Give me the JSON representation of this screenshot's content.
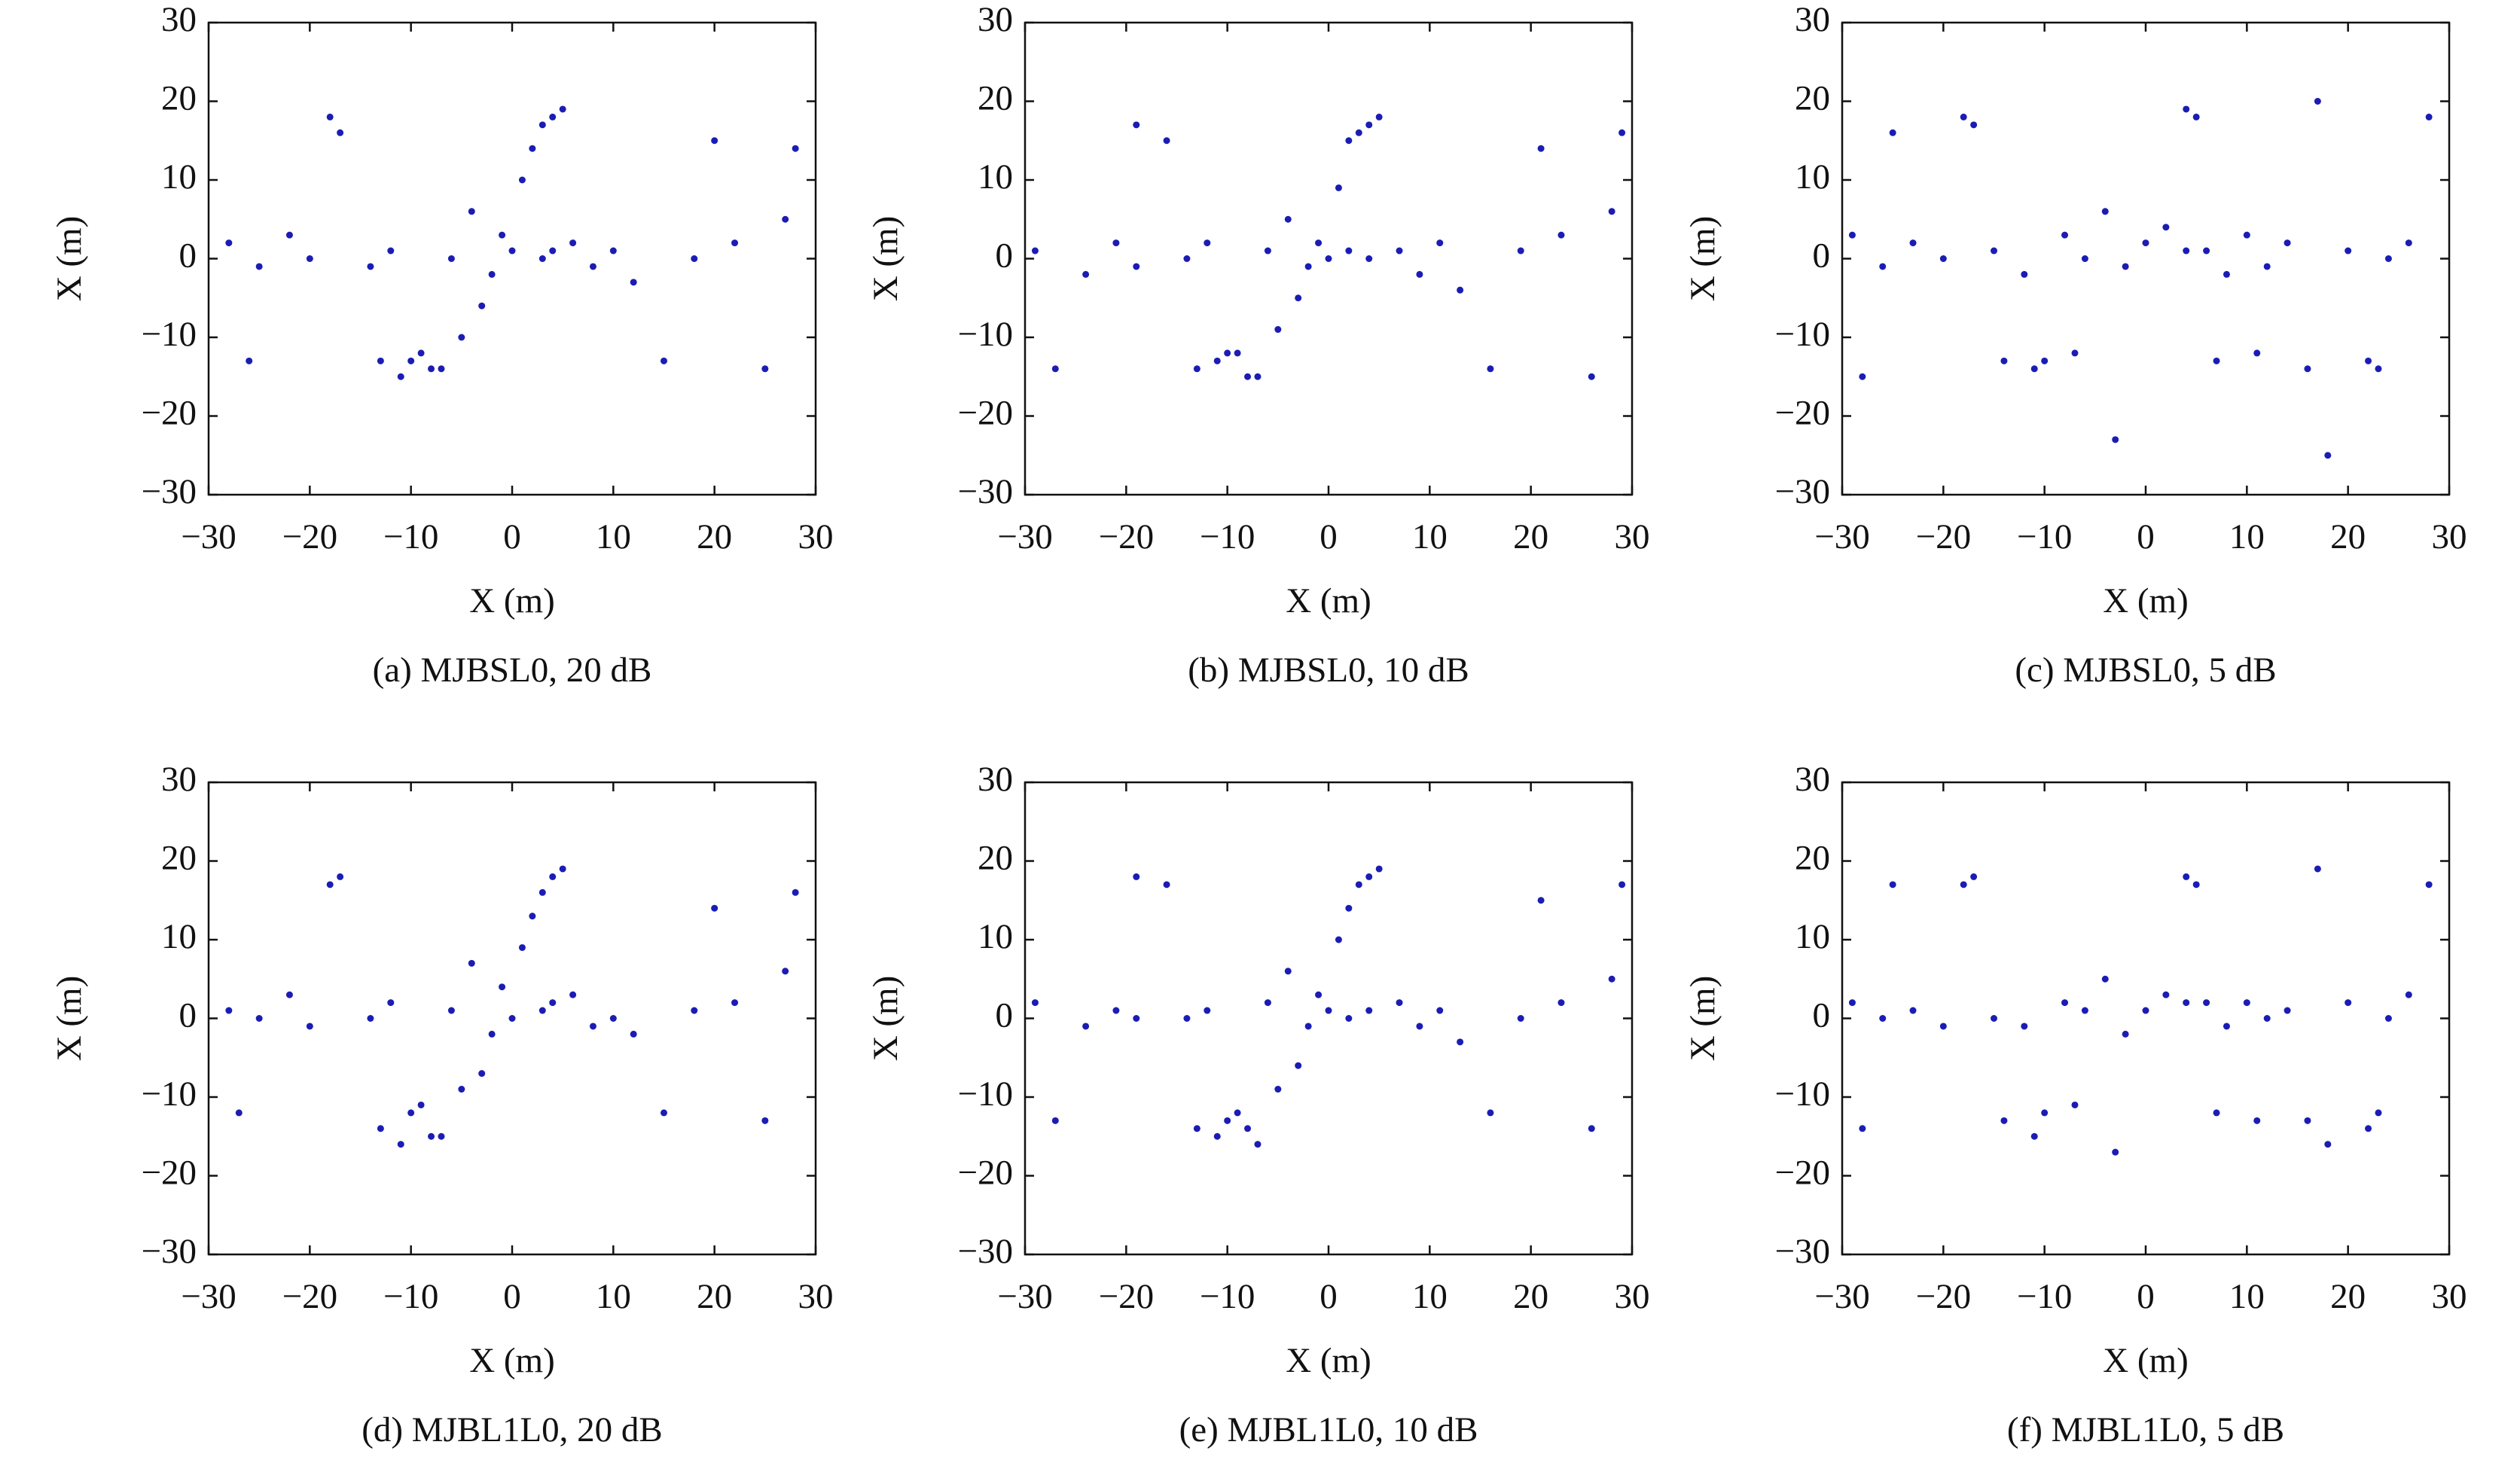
{
  "chart_data": [
    {
      "type": "scatter",
      "caption": "(a) MJBSL0, 20 dB",
      "xlabel": "X (m)",
      "ylabel": "X (m)",
      "xlim": [
        -30,
        30
      ],
      "ylim": [
        -30,
        30
      ],
      "xticks": [
        {
          "value": -30,
          "label": "−30"
        },
        {
          "value": -20,
          "label": "−20"
        },
        {
          "value": -10,
          "label": "−10"
        },
        0,
        10,
        20,
        30
      ],
      "yticks": [
        {
          "value": -30,
          "label": "−30"
        },
        {
          "value": -20,
          "label": "−20"
        },
        {
          "value": -10,
          "label": "−10"
        },
        0,
        10,
        20,
        30
      ],
      "series": [
        {
          "color": "#1c1cb4",
          "x": [
            -28,
            -25,
            -22,
            -20,
            -17,
            -14,
            -12,
            -10,
            -8,
            -6,
            -4,
            -2,
            0,
            1,
            2,
            3,
            4,
            5,
            6,
            8,
            10,
            12,
            15,
            18,
            22,
            25,
            28,
            -13,
            -11,
            -9,
            -7,
            -5,
            -18,
            -26,
            20,
            27,
            3,
            4,
            -3,
            -1
          ],
          "values": [
            2,
            -1,
            3,
            0,
            16,
            -1,
            1,
            -13,
            -14,
            0,
            6,
            -2,
            1,
            10,
            14,
            17,
            18,
            19,
            2,
            -1,
            1,
            -3,
            -13,
            0,
            2,
            -14,
            14,
            -13,
            -15,
            -12,
            -14,
            -10,
            18,
            -13,
            15,
            5,
            0,
            1,
            -6,
            3
          ]
        }
      ]
    },
    {
      "type": "scatter",
      "caption": "(b) MJBSL0, 10 dB",
      "xlabel": "X (m)",
      "ylabel": "X (m)",
      "xlim": [
        -30,
        30
      ],
      "ylim": [
        -30,
        30
      ],
      "xticks": [
        {
          "value": -30,
          "label": "−30"
        },
        {
          "value": -20,
          "label": "−20"
        },
        {
          "value": -10,
          "label": "−10"
        },
        0,
        10,
        20,
        30
      ],
      "yticks": [
        {
          "value": -30,
          "label": "−30"
        },
        {
          "value": -20,
          "label": "−20"
        },
        {
          "value": -10,
          "label": "−10"
        },
        0,
        10,
        20,
        30
      ],
      "series": [
        {
          "color": "#1c1cb4",
          "x": [
            -29,
            -24,
            -21,
            -19,
            -16,
            -14,
            -12,
            -10,
            -8,
            -6,
            -4,
            -2,
            0,
            1,
            2,
            3,
            4,
            5,
            7,
            9,
            11,
            13,
            16,
            19,
            23,
            26,
            29,
            -13,
            -11,
            -9,
            -7,
            -5,
            -19,
            -27,
            21,
            28,
            2,
            4,
            -3,
            -1
          ],
          "values": [
            1,
            -2,
            2,
            -1,
            15,
            0,
            2,
            -12,
            -15,
            1,
            5,
            -1,
            0,
            9,
            15,
            16,
            17,
            18,
            1,
            -2,
            2,
            -4,
            -14,
            1,
            3,
            -15,
            16,
            -14,
            -13,
            -12,
            -15,
            -9,
            17,
            -14,
            14,
            6,
            1,
            0,
            -5,
            2
          ]
        }
      ]
    },
    {
      "type": "scatter",
      "caption": "(c) MJBSL0, 5 dB",
      "xlabel": "X (m)",
      "ylabel": "X (m)",
      "xlim": [
        -30,
        30
      ],
      "ylim": [
        -30,
        30
      ],
      "xticks": [
        {
          "value": -30,
          "label": "−30"
        },
        {
          "value": -20,
          "label": "−20"
        },
        {
          "value": -10,
          "label": "−10"
        },
        0,
        10,
        20,
        30
      ],
      "yticks": [
        {
          "value": -30,
          "label": "−30"
        },
        {
          "value": -20,
          "label": "−20"
        },
        {
          "value": -10,
          "label": "−10"
        },
        0,
        10,
        20,
        30
      ],
      "series": [
        {
          "color": "#1c1cb4",
          "x": [
            -29,
            -26,
            -23,
            -20,
            -17,
            -15,
            -12,
            -10,
            -8,
            -6,
            -4,
            -2,
            0,
            2,
            4,
            5,
            6,
            8,
            10,
            12,
            14,
            16,
            18,
            20,
            22,
            24,
            26,
            28,
            -28,
            -25,
            -14,
            -11,
            -7,
            -3,
            7,
            11,
            17,
            23,
            -18,
            4
          ],
          "values": [
            3,
            -1,
            2,
            0,
            17,
            1,
            -2,
            -13,
            3,
            0,
            6,
            -1,
            2,
            4,
            19,
            18,
            1,
            -2,
            3,
            -1,
            2,
            -14,
            -25,
            1,
            -13,
            0,
            2,
            18,
            -15,
            16,
            -13,
            -14,
            -12,
            -23,
            -13,
            -12,
            20,
            -14,
            18,
            1
          ]
        }
      ]
    },
    {
      "type": "scatter",
      "caption": "(d) MJBL1L0, 20 dB",
      "xlabel": "X (m)",
      "ylabel": "X (m)",
      "xlim": [
        -30,
        30
      ],
      "ylim": [
        -30,
        30
      ],
      "xticks": [
        {
          "value": -30,
          "label": "−30"
        },
        {
          "value": -20,
          "label": "−20"
        },
        {
          "value": -10,
          "label": "−10"
        },
        0,
        10,
        20,
        30
      ],
      "yticks": [
        {
          "value": -30,
          "label": "−30"
        },
        {
          "value": -20,
          "label": "−20"
        },
        {
          "value": -10,
          "label": "−10"
        },
        0,
        10,
        20,
        30
      ],
      "series": [
        {
          "color": "#1c1cb4",
          "x": [
            -28,
            -25,
            -22,
            -20,
            -17,
            -14,
            -12,
            -10,
            -8,
            -6,
            -4,
            -2,
            0,
            1,
            2,
            3,
            4,
            5,
            6,
            8,
            10,
            12,
            15,
            18,
            22,
            25,
            28,
            -13,
            -11,
            -9,
            -7,
            -5,
            -18,
            -27,
            20,
            27,
            3,
            4,
            -3,
            -1
          ],
          "values": [
            1,
            0,
            3,
            -1,
            18,
            0,
            2,
            -12,
            -15,
            1,
            7,
            -2,
            0,
            9,
            13,
            16,
            18,
            19,
            3,
            -1,
            0,
            -2,
            -12,
            1,
            2,
            -13,
            16,
            -14,
            -16,
            -11,
            -15,
            -9,
            17,
            -12,
            14,
            6,
            1,
            2,
            -7,
            4
          ]
        }
      ]
    },
    {
      "type": "scatter",
      "caption": "(e) MJBL1L0, 10 dB",
      "xlabel": "X (m)",
      "ylabel": "X (m)",
      "xlim": [
        -30,
        30
      ],
      "ylim": [
        -30,
        30
      ],
      "xticks": [
        {
          "value": -30,
          "label": "−30"
        },
        {
          "value": -20,
          "label": "−20"
        },
        {
          "value": -10,
          "label": "−10"
        },
        0,
        10,
        20,
        30
      ],
      "yticks": [
        {
          "value": -30,
          "label": "−30"
        },
        {
          "value": -20,
          "label": "−20"
        },
        {
          "value": -10,
          "label": "−10"
        },
        0,
        10,
        20,
        30
      ],
      "series": [
        {
          "color": "#1c1cb4",
          "x": [
            -29,
            -24,
            -21,
            -19,
            -16,
            -14,
            -12,
            -10,
            -8,
            -6,
            -4,
            -2,
            0,
            1,
            2,
            3,
            4,
            5,
            7,
            9,
            11,
            13,
            16,
            19,
            23,
            26,
            29,
            -13,
            -11,
            -9,
            -7,
            -5,
            -19,
            -27,
            21,
            28,
            2,
            4,
            -3,
            -1
          ],
          "values": [
            2,
            -1,
            1,
            0,
            17,
            0,
            1,
            -13,
            -14,
            2,
            6,
            -1,
            1,
            10,
            14,
            17,
            18,
            19,
            2,
            -1,
            1,
            -3,
            -12,
            0,
            2,
            -14,
            17,
            -14,
            -15,
            -12,
            -16,
            -9,
            18,
            -13,
            15,
            5,
            0,
            1,
            -6,
            3
          ]
        }
      ]
    },
    {
      "type": "scatter",
      "caption": "(f) MJBL1L0, 5 dB",
      "xlabel": "X (m)",
      "ylabel": "X (m)",
      "xlim": [
        -30,
        30
      ],
      "ylim": [
        -30,
        30
      ],
      "xticks": [
        {
          "value": -30,
          "label": "−30"
        },
        {
          "value": -20,
          "label": "−20"
        },
        {
          "value": -10,
          "label": "−10"
        },
        0,
        10,
        20,
        30
      ],
      "yticks": [
        {
          "value": -30,
          "label": "−30"
        },
        {
          "value": -20,
          "label": "−20"
        },
        {
          "value": -10,
          "label": "−10"
        },
        0,
        10,
        20,
        30
      ],
      "series": [
        {
          "color": "#1c1cb4",
          "x": [
            -29,
            -26,
            -23,
            -20,
            -17,
            -15,
            -12,
            -10,
            -8,
            -6,
            -4,
            -2,
            0,
            2,
            4,
            5,
            6,
            8,
            10,
            12,
            14,
            16,
            18,
            20,
            22,
            24,
            26,
            28,
            -28,
            -25,
            -14,
            -11,
            -7,
            -3,
            7,
            11,
            17,
            23,
            -18,
            4
          ],
          "values": [
            2,
            0,
            1,
            -1,
            18,
            0,
            -1,
            -12,
            2,
            1,
            5,
            -2,
            1,
            3,
            18,
            17,
            2,
            -1,
            2,
            0,
            1,
            -13,
            -16,
            2,
            -14,
            0,
            3,
            17,
            -14,
            17,
            -13,
            -15,
            -11,
            -17,
            -12,
            -13,
            19,
            -12,
            17,
            2
          ]
        }
      ]
    }
  ]
}
